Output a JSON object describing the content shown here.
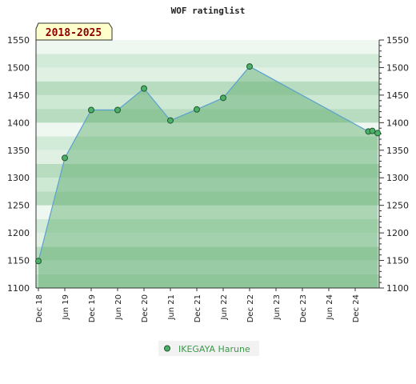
{
  "chart_data": {
    "type": "area",
    "title": "WOF ratinglist",
    "period_label": "2018-2025",
    "xlabel": "",
    "ylabel": "",
    "ylim": [
      1100,
      1550
    ],
    "y_ticks": [
      1100,
      1150,
      1200,
      1250,
      1300,
      1350,
      1400,
      1450,
      1500,
      1550
    ],
    "x_tick_labels": [
      "Dec 18",
      "Jun 19",
      "Dec 19",
      "Jun 20",
      "Dec 20",
      "Jun 21",
      "Dec 21",
      "Jun 22",
      "Dec 22",
      "Jun 23",
      "Dec 23",
      "Jun 24",
      "Dec 24"
    ],
    "grid": true,
    "legend_position": "bottom-center",
    "series": [
      {
        "name": "IKEGAYA Harune",
        "color": "#5aa0d0",
        "marker_color": "#4caf6a",
        "points": [
          {
            "x": 0,
            "y": 1149
          },
          {
            "x": 1,
            "y": 1336
          },
          {
            "x": 2,
            "y": 1423
          },
          {
            "x": 3,
            "y": 1423
          },
          {
            "x": 4,
            "y": 1462
          },
          {
            "x": 5,
            "y": 1404
          },
          {
            "x": 6,
            "y": 1424
          },
          {
            "x": 7,
            "y": 1445
          },
          {
            "x": 8,
            "y": 1502
          },
          {
            "x": 12.5,
            "y": 1384
          },
          {
            "x": 12.65,
            "y": 1385
          },
          {
            "x": 12.85,
            "y": 1381
          }
        ]
      }
    ]
  }
}
